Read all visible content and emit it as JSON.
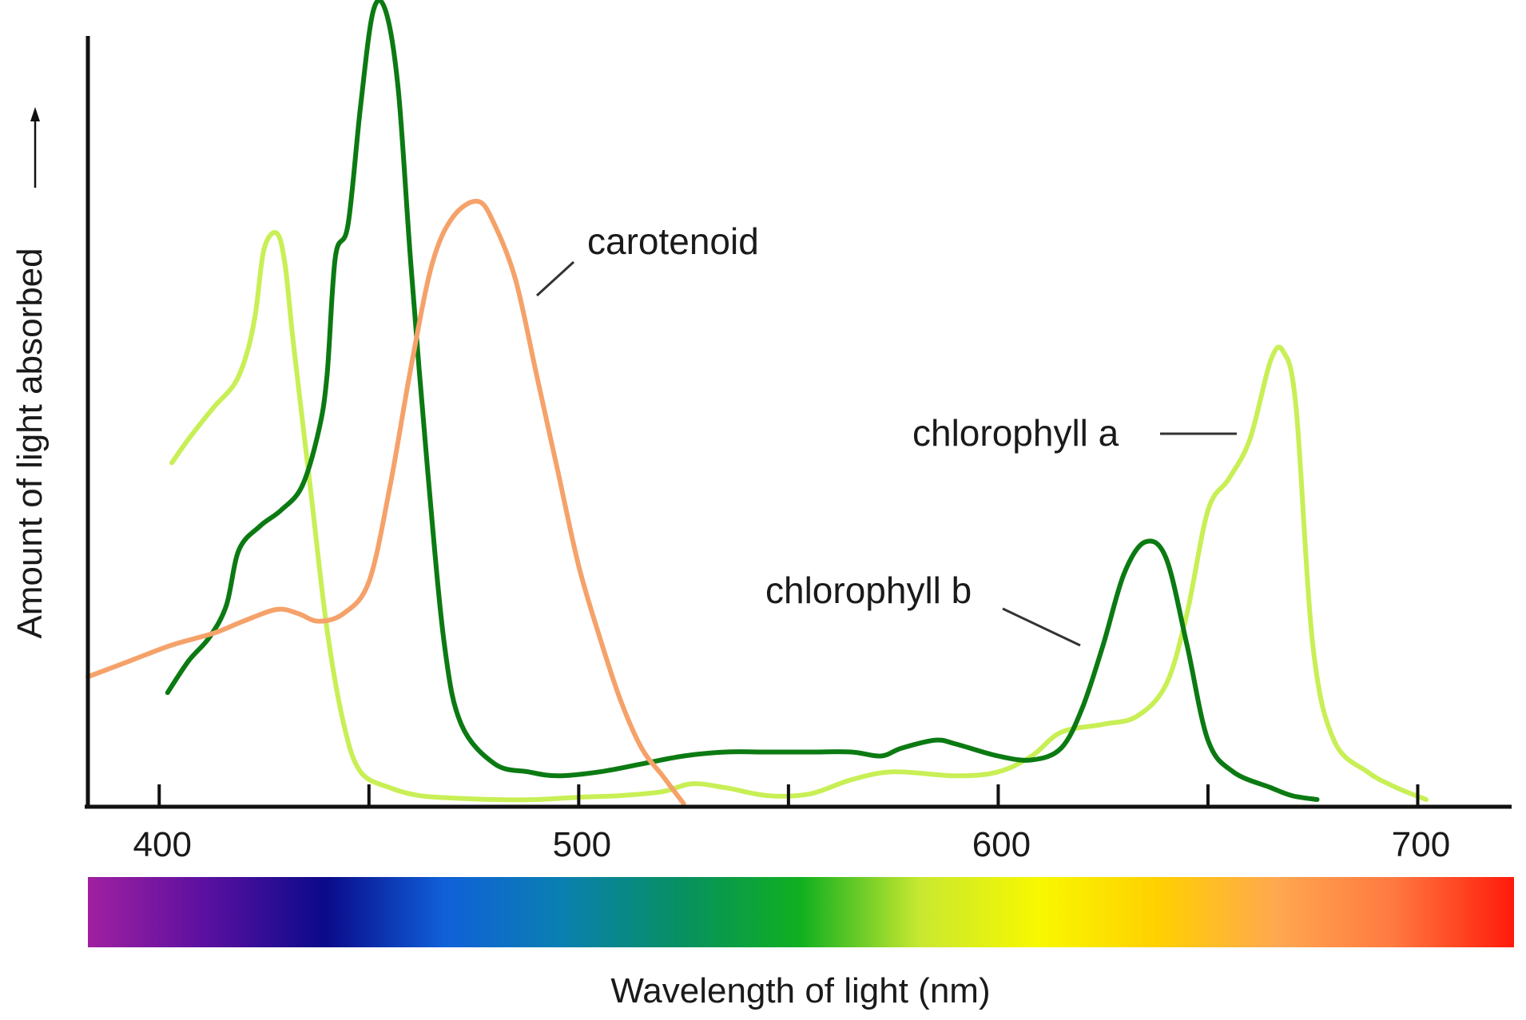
{
  "chart_data": {
    "type": "line",
    "title": "",
    "xlabel": "Wavelength of light (nm)",
    "ylabel": "Amount of light absorbed",
    "xlim": [
      383,
      722
    ],
    "ylim": [
      0,
      100
    ],
    "x_ticks": [
      400,
      450,
      500,
      550,
      600,
      650,
      700
    ],
    "x_tick_labels": [
      {
        "value": 400,
        "text": "400"
      },
      {
        "value": 500,
        "text": "500"
      },
      {
        "value": 600,
        "text": "600"
      },
      {
        "value": 700,
        "text": "700"
      }
    ],
    "spectrum_colors": [
      "#a020a0",
      "#5a10a0",
      "#0a0a8a",
      "#1060d8",
      "#0a80b0",
      "#079060",
      "#10b020",
      "#c8e830",
      "#f8f800",
      "#ffd000",
      "#ffa850",
      "#ff7840",
      "#ff1a0a"
    ],
    "series": [
      {
        "name": "chlorophyll a",
        "label": "chlorophyll a",
        "color": "#c8ef55",
        "points": [
          [
            403,
            43
          ],
          [
            407,
            46
          ],
          [
            413,
            50
          ],
          [
            418,
            53
          ],
          [
            421,
            57
          ],
          [
            423,
            62
          ],
          [
            425,
            70
          ],
          [
            428,
            72
          ],
          [
            430,
            68
          ],
          [
            432,
            58
          ],
          [
            436,
            40
          ],
          [
            440,
            22
          ],
          [
            444,
            10
          ],
          [
            448,
            4
          ],
          [
            455,
            2
          ],
          [
            462,
            1
          ],
          [
            470,
            0.7
          ],
          [
            480,
            0.5
          ],
          [
            490,
            0.5
          ],
          [
            500,
            0.8
          ],
          [
            510,
            1
          ],
          [
            520,
            1.5
          ],
          [
            527,
            2.5
          ],
          [
            535,
            2
          ],
          [
            545,
            1
          ],
          [
            555,
            1.2
          ],
          [
            565,
            3
          ],
          [
            575,
            4
          ],
          [
            590,
            3.5
          ],
          [
            600,
            4
          ],
          [
            608,
            6
          ],
          [
            615,
            9
          ],
          [
            625,
            10
          ],
          [
            633,
            11
          ],
          [
            640,
            15
          ],
          [
            645,
            24
          ],
          [
            650,
            37
          ],
          [
            655,
            41
          ],
          [
            660,
            46
          ],
          [
            665,
            56
          ],
          [
            668,
            57
          ],
          [
            671,
            50
          ],
          [
            675,
            20
          ],
          [
            680,
            8
          ],
          [
            688,
            4
          ],
          [
            695,
            2
          ],
          [
            702,
            0.5
          ]
        ]
      },
      {
        "name": "chlorophyll b",
        "label": "chlorophyll b",
        "color": "#0b7a12",
        "points": [
          [
            402,
            14
          ],
          [
            407,
            18
          ],
          [
            412,
            21
          ],
          [
            416,
            25
          ],
          [
            419,
            32
          ],
          [
            424,
            35
          ],
          [
            429,
            37
          ],
          [
            434,
            40
          ],
          [
            438,
            47
          ],
          [
            440,
            54
          ],
          [
            442,
            69
          ],
          [
            445,
            73
          ],
          [
            448,
            88
          ],
          [
            451,
            100
          ],
          [
            454,
            100
          ],
          [
            457,
            90
          ],
          [
            460,
            68
          ],
          [
            464,
            42
          ],
          [
            468,
            20
          ],
          [
            472,
            10
          ],
          [
            480,
            5
          ],
          [
            488,
            4
          ],
          [
            495,
            3.5
          ],
          [
            505,
            4
          ],
          [
            515,
            5
          ],
          [
            525,
            6
          ],
          [
            535,
            6.5
          ],
          [
            545,
            6.5
          ],
          [
            555,
            6.5
          ],
          [
            565,
            6.5
          ],
          [
            572,
            6
          ],
          [
            577,
            7
          ],
          [
            585,
            8
          ],
          [
            590,
            7.5
          ],
          [
            600,
            6
          ],
          [
            608,
            5.5
          ],
          [
            615,
            7
          ],
          [
            620,
            12
          ],
          [
            625,
            20
          ],
          [
            630,
            29
          ],
          [
            635,
            33
          ],
          [
            640,
            31
          ],
          [
            645,
            20
          ],
          [
            650,
            8
          ],
          [
            656,
            4
          ],
          [
            665,
            2
          ],
          [
            670,
            1
          ],
          [
            676,
            0.5
          ]
        ]
      },
      {
        "name": "carotenoid",
        "label": "carotenoid",
        "color": "#f5a26a",
        "points": [
          [
            383,
            16
          ],
          [
            393,
            18
          ],
          [
            403,
            20
          ],
          [
            413,
            21.5
          ],
          [
            420,
            23
          ],
          [
            428,
            24.5
          ],
          [
            433,
            24
          ],
          [
            438,
            23
          ],
          [
            444,
            24
          ],
          [
            450,
            28
          ],
          [
            455,
            40
          ],
          [
            460,
            55
          ],
          [
            465,
            68
          ],
          [
            470,
            74
          ],
          [
            476,
            76
          ],
          [
            480,
            73
          ],
          [
            485,
            66
          ],
          [
            490,
            54
          ],
          [
            495,
            42
          ],
          [
            500,
            30
          ],
          [
            505,
            21
          ],
          [
            510,
            13
          ],
          [
            515,
            7
          ],
          [
            520,
            3.5
          ],
          [
            525,
            0
          ]
        ]
      }
    ],
    "annotations": [
      {
        "text": "carotenoid"
      },
      {
        "text": "chlorophyll a"
      },
      {
        "text": "chlorophyll b"
      }
    ]
  }
}
